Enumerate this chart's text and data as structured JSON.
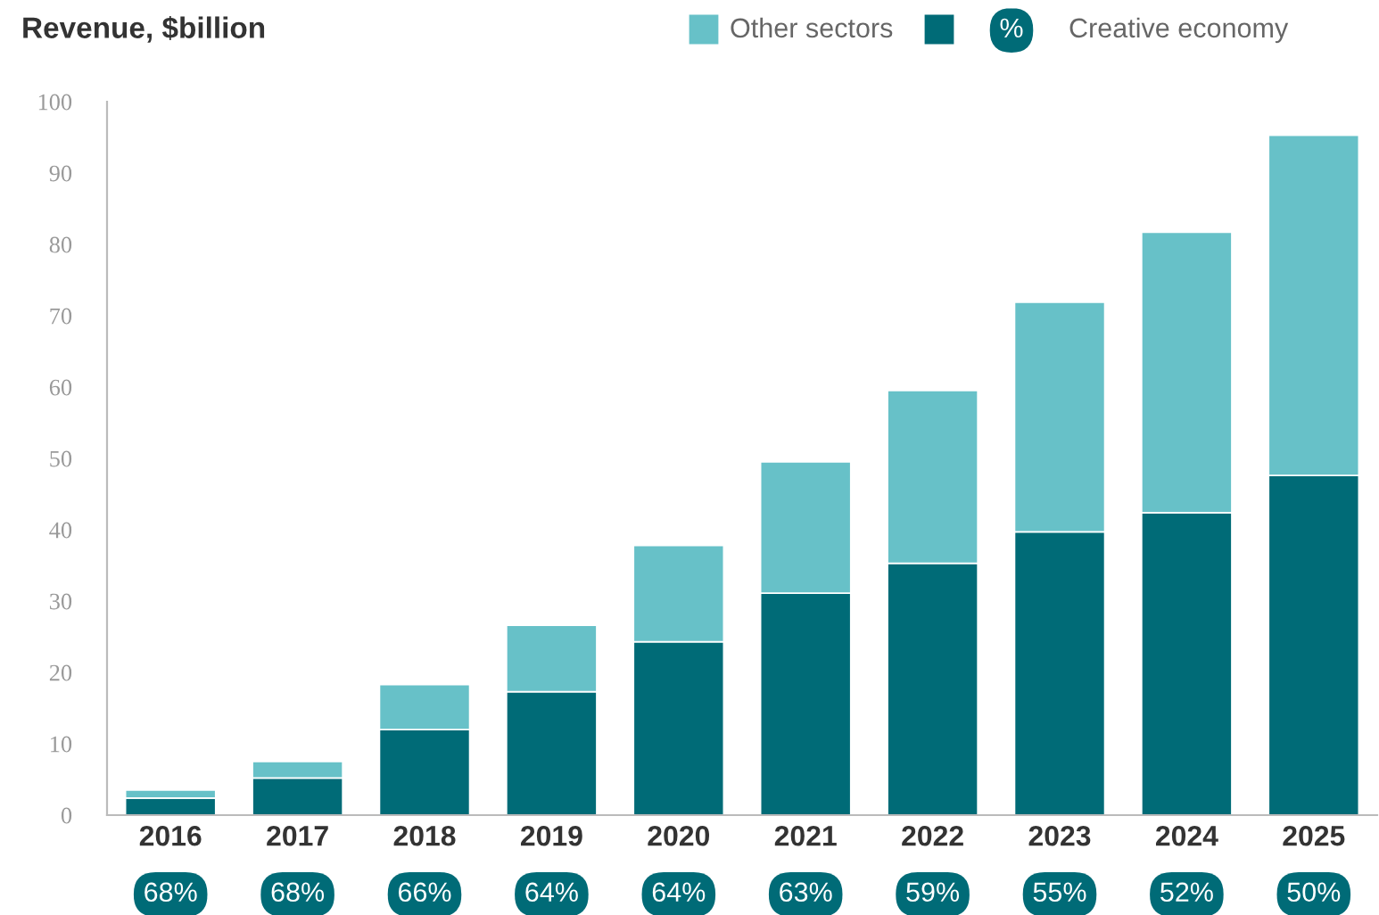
{
  "chart_data": {
    "type": "bar",
    "title": "Revenue, $billion",
    "stacked": true,
    "categories": [
      "2016",
      "2017",
      "2018",
      "2019",
      "2020",
      "2021",
      "2022",
      "2023",
      "2024",
      "2025"
    ],
    "series": [
      {
        "name": "Creative economy",
        "color": "#006b77",
        "values": [
          2.4,
          5.2,
          12.0,
          17.3,
          24.3,
          31.1,
          35.3,
          39.7,
          42.4,
          47.6
        ]
      },
      {
        "name": "Other sectors",
        "color": "#67c1c8",
        "values": [
          1.1,
          2.3,
          6.3,
          9.3,
          13.5,
          18.4,
          24.2,
          32.2,
          39.3,
          47.7
        ]
      }
    ],
    "annotations": [
      "%",
      "68%",
      "68%",
      "66%",
      "64%",
      "64%",
      "63%",
      "59%",
      "55%",
      "52%",
      "50%"
    ],
    "ylim": [
      0,
      100
    ],
    "yticks": [
      0,
      10,
      20,
      30,
      40,
      50,
      60,
      70,
      80,
      90,
      100
    ],
    "grid": false,
    "legend": "top right"
  }
}
